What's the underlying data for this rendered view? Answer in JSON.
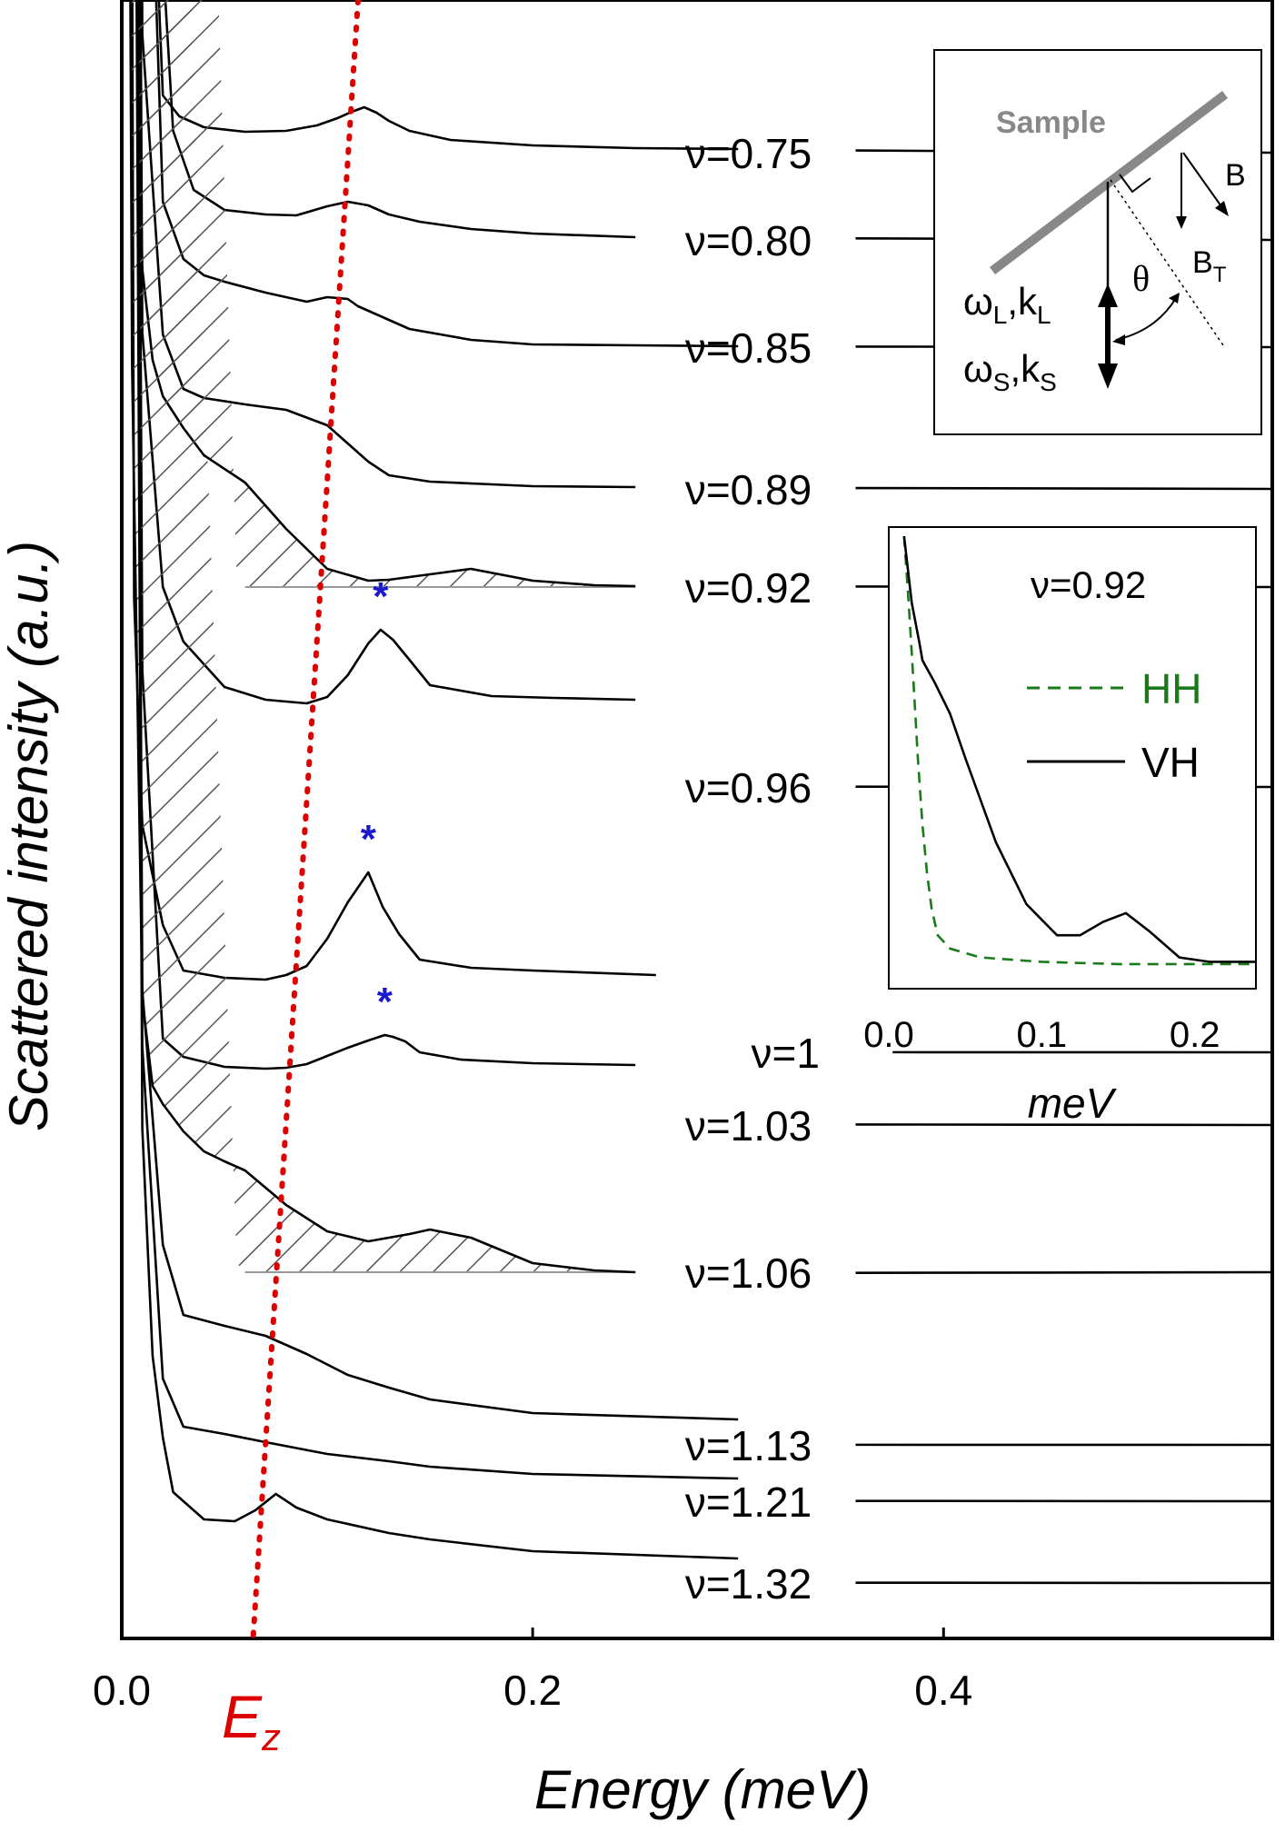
{
  "chart_data": {
    "type": "line",
    "title": "",
    "xlabel": "Energy (meV)",
    "ylabel": "Scattered intensity (a.u.)",
    "xlim": [
      0,
      0.56
    ],
    "xticks": [
      "0.0",
      "0.2",
      "0.4"
    ],
    "xtick_values": [
      0.0,
      0.2,
      0.4
    ],
    "yticks": "none",
    "grid": false,
    "ez_label": "E",
    "ez_sub": "z",
    "ez_line_color": "#dd0000",
    "hatched_series": [
      "ν=0.92",
      "ν=1.06"
    ],
    "peak_marker": "*",
    "peak_marker_color": "#1a1acc",
    "ez_points": [
      [
        0.114,
        0.75
      ],
      [
        0.107,
        0.85
      ],
      [
        0.098,
        0.92
      ],
      [
        0.089,
        0.96
      ],
      [
        0.075,
        1.03
      ],
      [
        0.068,
        1.13
      ],
      [
        0.065,
        1.32
      ]
    ],
    "series": [
      {
        "name": "ν=0.75",
        "label_x": 0.305,
        "label_base": 0.04,
        "marks": [],
        "x": [
          0.0,
          0.012,
          0.02,
          0.028,
          0.04,
          0.06,
          0.08,
          0.095,
          0.105,
          0.112,
          0.118,
          0.124,
          0.13,
          0.14,
          0.16,
          0.2,
          0.25,
          0.3
        ],
        "y": [
          50,
          5,
          0.63,
          0.4,
          0.28,
          0.23,
          0.24,
          0.3,
          0.38,
          0.45,
          0.5,
          0.44,
          0.35,
          0.24,
          0.14,
          0.08,
          0.05,
          0.04
        ]
      },
      {
        "name": "ν=0.80",
        "label_x": 0.305,
        "label_base": 0.028,
        "marks": [],
        "x": [
          0.0,
          0.015,
          0.025,
          0.035,
          0.05,
          0.07,
          0.085,
          0.1,
          0.11,
          0.12,
          0.13,
          0.145,
          0.17,
          0.2,
          0.25
        ],
        "y": [
          50,
          5,
          1.2,
          0.55,
          0.33,
          0.28,
          0.27,
          0.37,
          0.42,
          0.38,
          0.28,
          0.2,
          0.12,
          0.07,
          0.03
        ]
      },
      {
        "name": "ν=0.85",
        "label_x": 0.305,
        "label_base": 0.01,
        "marks": [],
        "x": [
          0.0,
          0.015,
          0.02,
          0.03,
          0.04,
          0.05,
          0.07,
          0.09,
          0.1,
          0.11,
          0.115,
          0.125,
          0.14,
          0.17,
          0.2,
          0.25,
          0.3
        ],
        "y": [
          50,
          5,
          1.6,
          0.97,
          0.79,
          0.72,
          0.6,
          0.5,
          0.55,
          0.53,
          0.45,
          0.35,
          0.2,
          0.08,
          0.03,
          0.02,
          0.01
        ]
      },
      {
        "name": "ν=0.89",
        "label_x": 0.305,
        "label_base": 0.016,
        "marks": [],
        "x": [
          0.0,
          0.01,
          0.02,
          0.03,
          0.04,
          0.06,
          0.08,
          0.1,
          0.11,
          0.12,
          0.13,
          0.15,
          0.18,
          0.2,
          0.25
        ],
        "y": [
          50,
          5,
          1.7,
          1.1,
          1.0,
          0.93,
          0.87,
          0.7,
          0.5,
          0.3,
          0.15,
          0.08,
          0.05,
          0.03,
          0.02
        ]
      },
      {
        "name": "ν=0.92",
        "label_x": 0.305,
        "label_base": 0.01,
        "marks": [],
        "x": [
          0.0,
          0.005,
          0.01,
          0.015,
          0.02,
          0.03,
          0.04,
          0.06,
          0.08,
          0.1,
          0.12,
          0.13,
          0.15,
          0.17,
          0.2,
          0.23,
          0.25
        ],
        "y": [
          40,
          10,
          3.5,
          2.5,
          2.1,
          1.75,
          1.45,
          1.15,
          0.64,
          0.2,
          0.07,
          0.08,
          0.14,
          0.2,
          0.07,
          0.02,
          0.01
        ]
      },
      {
        "name": "ν=0.96",
        "label_x": 0.305,
        "label_base": 0.005,
        "marks": [
          {
            "x": 0.126,
            "dy": 0.08
          }
        ],
        "x": [
          0.0,
          0.01,
          0.02,
          0.03,
          0.05,
          0.07,
          0.09,
          0.1,
          0.11,
          0.12,
          0.126,
          0.132,
          0.14,
          0.15,
          0.18,
          0.21,
          0.25
        ],
        "y": [
          50,
          5,
          2.2,
          1.6,
          1.1,
          0.96,
          0.92,
          0.99,
          1.23,
          1.58,
          1.73,
          1.62,
          1.4,
          1.12,
          1.0,
          0.98,
          0.96
        ]
      },
      {
        "name": "ν=1",
        "label_x": 0.323,
        "label_base": 0.002,
        "marks": [
          {
            "x": 0.12,
            "dy": 0.08
          }
        ],
        "x": [
          0.0,
          0.006,
          0.01,
          0.02,
          0.03,
          0.05,
          0.07,
          0.08,
          0.09,
          0.1,
          0.11,
          0.12,
          0.127,
          0.135,
          0.145,
          0.17,
          0.2,
          0.26
        ],
        "y": [
          50,
          5,
          2.5,
          1.4,
          0.9,
          0.82,
          0.8,
          0.85,
          0.95,
          1.25,
          1.65,
          1.98,
          1.6,
          1.3,
          1.02,
          0.93,
          0.9,
          0.85
        ]
      },
      {
        "name": "ν=1.03",
        "label_x": 0.305,
        "label_base": 0.01,
        "marks": [
          {
            "x": 0.128,
            "dy": 0.08
          }
        ],
        "x": [
          0.0,
          0.01,
          0.02,
          0.03,
          0.05,
          0.07,
          0.08,
          0.09,
          0.1,
          0.11,
          0.12,
          0.128,
          0.132,
          0.138,
          0.145,
          0.165,
          0.2,
          0.25
        ],
        "y": [
          50,
          5,
          0.95,
          0.75,
          0.64,
          0.62,
          0.63,
          0.67,
          0.76,
          0.85,
          0.93,
          0.99,
          0.97,
          0.92,
          0.8,
          0.72,
          0.68,
          0.66
        ]
      },
      {
        "name": "ν=1.06",
        "label_x": 0.305,
        "label_base": -0.012,
        "marks": [],
        "x": [
          0.0,
          0.005,
          0.01,
          0.015,
          0.02,
          0.03,
          0.04,
          0.05,
          0.06,
          0.08,
          0.1,
          0.12,
          0.14,
          0.15,
          0.17,
          0.2,
          0.23,
          0.25
        ],
        "y": [
          35,
          10,
          3,
          2.05,
          1.85,
          1.55,
          1.33,
          1.22,
          1.12,
          0.74,
          0.45,
          0.34,
          0.42,
          0.47,
          0.38,
          0.1,
          0.02,
          0.0
        ]
      },
      {
        "name": "ν=1.13",
        "label_x": 0.305,
        "label_base": 0.002,
        "marks": [],
        "x": [
          0.0,
          0.01,
          0.02,
          0.03,
          0.05,
          0.07,
          0.09,
          0.11,
          0.13,
          0.15,
          0.2,
          0.3
        ],
        "y": [
          50,
          5,
          2.2,
          1.43,
          1.31,
          1.2,
          1.0,
          0.77,
          0.63,
          0.5,
          0.35,
          0.28
        ]
      },
      {
        "name": "ν=1.21",
        "label_x": 0.305,
        "label_base": 0.006,
        "marks": [],
        "x": [
          0.0,
          0.01,
          0.02,
          0.03,
          0.05,
          0.07,
          0.1,
          0.13,
          0.15,
          0.2,
          0.3
        ],
        "y": [
          50,
          5,
          1.35,
          0.82,
          0.74,
          0.65,
          0.52,
          0.44,
          0.38,
          0.3,
          0.25
        ]
      },
      {
        "name": "ν=1.32",
        "label_x": 0.305,
        "label_base": 0.006,
        "marks": [],
        "x": [
          0.0,
          0.01,
          0.015,
          0.02,
          0.025,
          0.04,
          0.055,
          0.065,
          0.075,
          0.085,
          0.1,
          0.13,
          0.15,
          0.2,
          0.3
        ],
        "y": [
          50,
          5,
          2.5,
          1.6,
          1.0,
          0.7,
          0.68,
          0.8,
          0.98,
          0.83,
          0.7,
          0.55,
          0.48,
          0.35,
          0.27
        ]
      }
    ],
    "inset_diagram": {
      "sample_label": "Sample",
      "b_label": "B",
      "bt_label": "B",
      "bt_sub": "T",
      "theta_label": "θ",
      "wl_label": "ω",
      "wl_sub1": "L",
      "wl_mid": ",k",
      "wl_sub2": "L",
      "ws_label": "ω",
      "ws_sub1": "S",
      "ws_mid": ",k",
      "ws_sub2": "S"
    },
    "inset_chart": {
      "label": "ν=0.92",
      "xlabel": "meV",
      "xlim": [
        0,
        0.24
      ],
      "xticks": [
        "0.0",
        "0.1",
        "0.2"
      ],
      "xtick_values": [
        0.0,
        0.1,
        0.2
      ],
      "series": [
        {
          "name": "HH",
          "color": "#1a7a1a",
          "dash": "dashed",
          "x": [
            0.01,
            0.013,
            0.016,
            0.019,
            0.022,
            0.025,
            0.028,
            0.032,
            0.04,
            0.06,
            0.1,
            0.15,
            0.2,
            0.24
          ],
          "y": [
            1.0,
            0.85,
            0.68,
            0.5,
            0.35,
            0.24,
            0.16,
            0.1,
            0.07,
            0.05,
            0.04,
            0.035,
            0.035,
            0.035
          ]
        },
        {
          "name": "VH",
          "color": "#000000",
          "dash": "solid",
          "x": [
            0.01,
            0.015,
            0.02,
            0.022,
            0.03,
            0.04,
            0.05,
            0.07,
            0.09,
            0.11,
            0.125,
            0.14,
            0.155,
            0.17,
            0.19,
            0.21,
            0.24
          ],
          "y": [
            1.0,
            0.85,
            0.76,
            0.72,
            0.67,
            0.6,
            0.5,
            0.31,
            0.17,
            0.1,
            0.1,
            0.13,
            0.15,
            0.11,
            0.05,
            0.04,
            0.04
          ]
        }
      ]
    }
  }
}
